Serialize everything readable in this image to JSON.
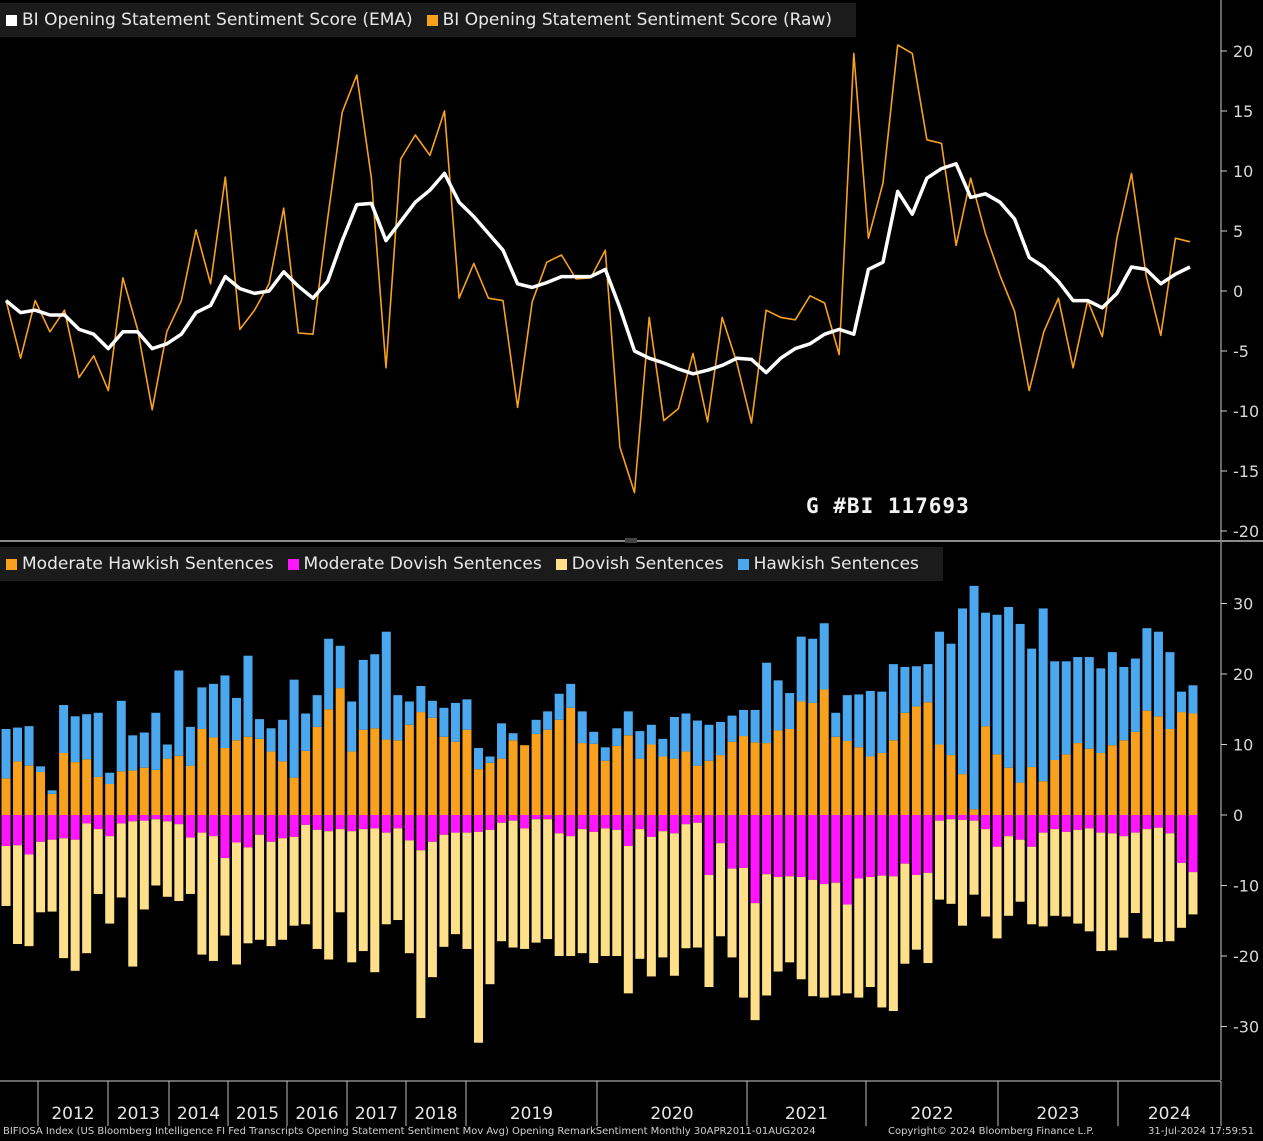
{
  "footer": {
    "left": "BIFIOSA Index (US Bloomberg Intelligence FI Fed Transcripts Opening Statement Sentiment Mov Avg) Opening RemarkSentiment  Monthly 30APR2011-01AUG2024",
    "copyright": "Copyright© 2024 Bloomberg Finance L.P.",
    "timestamp": "31-Jul-2024 17:59:51"
  },
  "bi_label": "G #BI 117693",
  "colors": {
    "ema": "#ffffff",
    "raw": "#f7a11f",
    "moderate_hawkish": "#f7a11f",
    "moderate_dovish": "#ff16ff",
    "dovish": "#ffe08a",
    "hawkish": "#4ba8ee"
  },
  "chart_data": [
    {
      "type": "line",
      "legend": [
        "BI Opening Statement Sentiment Score (EMA)",
        "BI Opening Statement Sentiment Score (Raw)"
      ],
      "ylim": [
        -20,
        22
      ],
      "yticks": [
        "20",
        "15",
        "10",
        "5",
        "0",
        "-5",
        "-10",
        "-15",
        "-20"
      ],
      "series": [
        {
          "name": "BI Opening Statement Sentiment Score (EMA)",
          "values": [
            -0.8,
            -1.8,
            -1.6,
            -2.0,
            -2.0,
            -3.2,
            -3.6,
            -4.8,
            -3.4,
            -3.4,
            -4.8,
            -4.4,
            -3.6,
            -1.8,
            -1.2,
            1.2,
            0.2,
            -0.2,
            0.0,
            1.6,
            0.4,
            -0.6,
            0.8,
            4.2,
            7.2,
            7.3,
            4.2,
            5.8,
            7.4,
            8.4,
            9.8,
            7.4,
            6.2,
            4.8,
            3.4,
            0.6,
            0.3,
            0.7,
            1.2,
            1.2,
            1.2,
            1.8,
            -1.4,
            -5.0,
            -5.6,
            -6.0,
            -6.5,
            -6.9,
            -6.6,
            -6.2,
            -5.6,
            -5.7,
            -6.8,
            -5.6,
            -4.8,
            -4.4,
            -3.6,
            -3.2,
            -3.6,
            1.8,
            2.4,
            8.3,
            6.4,
            9.4,
            10.2,
            10.6,
            7.8,
            8.1,
            7.4,
            6.0,
            2.8,
            2.0,
            0.8,
            -0.8,
            -0.8,
            -1.4,
            -0.2,
            2.0,
            1.8,
            0.6,
            1.4,
            2.0
          ]
        },
        {
          "name": "BI Opening Statement Sentiment Score (Raw)",
          "values": [
            -0.8,
            -5.6,
            -0.8,
            -3.4,
            -1.6,
            -7.2,
            -5.4,
            -8.3,
            1.1,
            -3.2,
            -9.9,
            -3.4,
            -0.8,
            5.1,
            0.6,
            9.5,
            -3.2,
            -1.6,
            0.6,
            6.9,
            -3.5,
            -3.6,
            6.0,
            14.9,
            18.0,
            9.4,
            -6.4,
            11.0,
            13.0,
            11.3,
            15.0,
            -0.6,
            2.3,
            -0.6,
            -0.8,
            -9.7,
            -0.9,
            2.4,
            3.0,
            1.0,
            1.1,
            3.4,
            -13.0,
            -16.8,
            -2.2,
            -10.8,
            -9.8,
            -5.2,
            -10.9,
            -2.2,
            -6.0,
            -11.0,
            -1.6,
            -2.2,
            -2.4,
            -0.4,
            -1.0,
            -5.3,
            19.8,
            4.4,
            9.0,
            20.5,
            19.8,
            12.6,
            12.3,
            3.8,
            9.4,
            4.8,
            1.3,
            -1.7,
            -8.3,
            -3.4,
            -0.6,
            -6.4,
            -0.8,
            -3.8,
            4.4,
            9.8,
            1.3,
            -3.7,
            4.4,
            4.1
          ]
        }
      ]
    },
    {
      "type": "bar",
      "stacked": true,
      "legend": [
        "Moderate Hawkish Sentences",
        "Moderate Dovish Sentences",
        "Dovish Sentences",
        "Hawkish Sentences"
      ],
      "ylim": [
        -35,
        35
      ],
      "yticks": [
        "30",
        "20",
        "10",
        "0",
        "-10",
        "-20",
        "-30"
      ],
      "series": [
        {
          "name": "Moderate Hawkish Sentences",
          "values": [
            5.2,
            7.6,
            7.0,
            6.1,
            3.0,
            8.8,
            7.5,
            7.9,
            5.4,
            4.4,
            6.2,
            6.3,
            6.7,
            6.4,
            8.0,
            8.4,
            7.0,
            12.2,
            11.0,
            9.5,
            10.6,
            11.1,
            10.8,
            9.0,
            7.6,
            5.3,
            9.1,
            12.5,
            15.0,
            18.0,
            9.0,
            12.1,
            12.3,
            10.7,
            10.6,
            12.8,
            14.6,
            13.8,
            11.1,
            10.4,
            12.1,
            6.5,
            7.4,
            8.0,
            10.6,
            9.9,
            11.5,
            12.1,
            13.5,
            15.2,
            10.2,
            10.1,
            7.7,
            9.8,
            11.3,
            8.0,
            10.0,
            8.3,
            8.0,
            9.0,
            7.0,
            7.7,
            8.5,
            10.4,
            11.2,
            10.3,
            10.2,
            12.0,
            12.2,
            16.1,
            15.9,
            17.8,
            11.1,
            10.5,
            9.6,
            8.3,
            8.8,
            10.6,
            14.5,
            15.4,
            16.0,
            10.0,
            8.5,
            5.8,
            0.8,
            12.6,
            8.6,
            6.7,
            4.6,
            6.8,
            4.8,
            7.8,
            8.6,
            10.2,
            9.4,
            8.8,
            9.9,
            10.6,
            11.8,
            14.8,
            14.0,
            12.2,
            14.6,
            14.4
          ]
        },
        {
          "name": "Moderate Dovish Sentences",
          "values": [
            -4.4,
            -4.3,
            -5.6,
            -3.8,
            -3.5,
            -3.3,
            -3.5,
            -1.2,
            -2.0,
            -3.0,
            -1.2,
            -0.9,
            -0.8,
            -0.6,
            -0.9,
            -1.3,
            -3.2,
            -2.5,
            -3.0,
            -6.1,
            -3.9,
            -4.6,
            -2.8,
            -3.8,
            -3.3,
            -3.1,
            -1.4,
            -2.1,
            -2.3,
            -2.0,
            -2.3,
            -2.0,
            -1.9,
            -2.5,
            -1.9,
            -3.6,
            -5.0,
            -3.8,
            -2.8,
            -2.5,
            -2.5,
            -2.4,
            -2.1,
            -1.1,
            -0.8,
            -1.9,
            -0.6,
            -0.6,
            -2.6,
            -3.0,
            -2.0,
            -2.4,
            -1.9,
            -2.1,
            -4.4,
            -2.0,
            -3.1,
            -2.3,
            -2.6,
            -1.3,
            -1.1,
            -8.5,
            -4.0,
            -7.6,
            -7.5,
            -12.5,
            -8.4,
            -8.8,
            -8.7,
            -8.8,
            -9.2,
            -9.8,
            -9.6,
            -12.7,
            -9.0,
            -8.8,
            -8.6,
            -8.7,
            -6.9,
            -8.5,
            -8.2,
            -0.8,
            -0.6,
            -0.7,
            -0.8,
            -2.0,
            -4.5,
            -3.0,
            -3.5,
            -4.5,
            -2.5,
            -2.0,
            -2.4,
            -2.1,
            -1.9,
            -2.5,
            -2.6,
            -3.0,
            -2.5,
            -2.0,
            -1.8,
            -2.6,
            -6.8,
            -8.1
          ]
        },
        {
          "name": "Dovish Sentences",
          "values": [
            -8.5,
            -14.0,
            -13.0,
            -10.0,
            -10.2,
            -17.0,
            -18.6,
            -18.4,
            -9.2,
            -12.4,
            -10.5,
            -20.6,
            -12.6,
            -9.4,
            -10.7,
            -10.9,
            -8.0,
            -17.3,
            -17.7,
            -11.0,
            -17.3,
            -13.6,
            -14.9,
            -14.8,
            -14.4,
            -12.6,
            -14.1,
            -16.9,
            -18.2,
            -11.8,
            -18.6,
            -17.3,
            -20.4,
            -13.0,
            -13.0,
            -16.0,
            -23.8,
            -19.2,
            -15.9,
            -14.4,
            -16.5,
            -29.9,
            -21.9,
            -16.8,
            -18.0,
            -17.1,
            -17.5,
            -17.0,
            -17.4,
            -17.0,
            -17.6,
            -18.6,
            -18.1,
            -17.9,
            -20.9,
            -18.4,
            -19.8,
            -17.9,
            -20.2,
            -17.6,
            -17.7,
            -15.9,
            -13.2,
            -12.6,
            -18.4,
            -16.6,
            -17.2,
            -13.4,
            -12.2,
            -14.5,
            -16.5,
            -16.1,
            -16.0,
            -12.6,
            -16.9,
            -15.6,
            -18.7,
            -19.1,
            -14.2,
            -10.6,
            -12.8,
            -11.2,
            -12.0,
            -15.0,
            -10.5,
            -12.4,
            -13.0,
            -11.3,
            -8.8,
            -11.0,
            -13.3,
            -12.3,
            -12.0,
            -13.3,
            -14.6,
            -16.8,
            -16.6,
            -14.4,
            -11.4,
            -15.5,
            -16.2,
            -15.3,
            -9.2,
            -6.0
          ]
        },
        {
          "name": "Hawkish Sentences",
          "values": [
            7.0,
            4.8,
            5.6,
            0.8,
            0.5,
            6.8,
            6.5,
            6.4,
            9.1,
            1.6,
            10.0,
            5.0,
            5.0,
            8.1,
            2.0,
            12.1,
            5.5,
            5.9,
            7.6,
            10.3,
            6.0,
            11.5,
            2.8,
            3.3,
            5.9,
            13.9,
            5.3,
            4.5,
            10.0,
            6.0,
            7.1,
            9.9,
            10.5,
            15.3,
            6.4,
            3.3,
            3.7,
            2.4,
            4.1,
            5.5,
            4.3,
            3.0,
            0.9,
            5.0,
            1.0,
            0.0,
            2.0,
            2.6,
            3.7,
            3.4,
            4.5,
            1.7,
            1.9,
            2.5,
            3.4,
            3.9,
            2.8,
            2.5,
            5.9,
            5.4,
            6.4,
            5.1,
            4.7,
            3.7,
            3.7,
            4.6,
            11.4,
            7.1,
            5.1,
            9.2,
            9.1,
            9.4,
            3.4,
            6.5,
            7.5,
            9.3,
            8.7,
            10.8,
            6.5,
            5.7,
            5.4,
            16.0,
            15.8,
            23.5,
            31.7,
            16.1,
            19.8,
            22.8,
            22.5,
            16.8,
            24.5,
            14.0,
            13.2,
            12.2,
            13.0,
            12.0,
            13.2,
            10.4,
            10.4,
            11.7,
            12.0,
            10.9,
            2.9,
            4.0
          ]
        }
      ],
      "x_year_labels": [
        "2012",
        "2013",
        "2014",
        "2015",
        "2016",
        "2017",
        "2018",
        "2019",
        "2020",
        "2021",
        "2022",
        "2023",
        "2024"
      ]
    }
  ]
}
